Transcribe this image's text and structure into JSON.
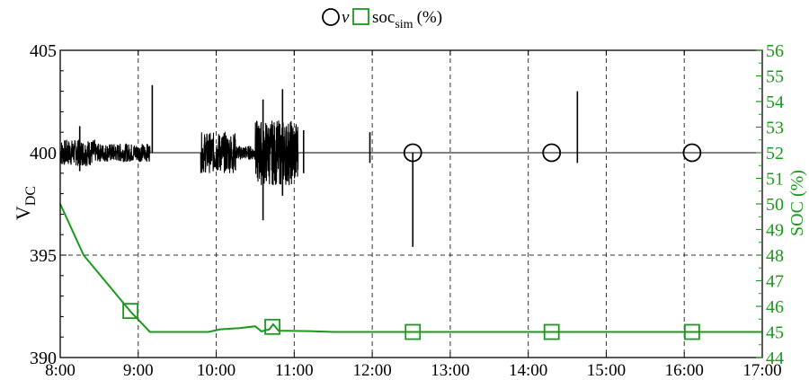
{
  "chart_data": {
    "type": "line",
    "x": {
      "ticks": [
        "8:00",
        "9:00",
        "10:00",
        "11:00",
        "12:00",
        "13:00",
        "14:00",
        "15:00",
        "16:00",
        "17:00"
      ],
      "range_hours": [
        8,
        17
      ],
      "grid": "dashed vertical at each hour"
    },
    "y_left": {
      "label_main": "V",
      "label_sub": "DC",
      "ticks": [
        "390",
        "395",
        "400",
        "405"
      ],
      "range": [
        390,
        405
      ],
      "color": "#000000"
    },
    "y_right": {
      "label": "SOC (%)",
      "ticks": [
        "44",
        "45",
        "46",
        "47",
        "48",
        "49",
        "50",
        "51",
        "52",
        "53",
        "54",
        "55",
        "56"
      ],
      "range": [
        44,
        56
      ],
      "color": "#1a9a1a"
    },
    "legend": {
      "placement": "top-center",
      "v_label": "v",
      "soc_main": "soc",
      "soc_sub": "sim",
      "soc_unit": "(%)"
    },
    "series": [
      {
        "name": "v",
        "axis": "left",
        "color": "#000000",
        "marker": "circle",
        "baseline": 400,
        "noise_bursts": [
          {
            "start": 8.0,
            "end": 8.45,
            "amplitude": 0.65
          },
          {
            "start": 8.45,
            "end": 9.15,
            "amplitude": 0.45
          },
          {
            "start": 9.8,
            "end": 10.25,
            "amplitude": 1.0
          },
          {
            "start": 10.25,
            "end": 10.5,
            "amplitude": 0.35
          },
          {
            "start": 10.5,
            "end": 11.05,
            "amplitude": 1.6
          }
        ],
        "spikes": [
          {
            "x": 8.25,
            "min": 399.1,
            "max": 401.3
          },
          {
            "x": 9.18,
            "min": 400.0,
            "max": 403.3
          },
          {
            "x": 10.6,
            "min": 396.7,
            "max": 402.6
          },
          {
            "x": 10.85,
            "min": 397.9,
            "max": 403.1
          },
          {
            "x": 11.12,
            "min": 399.0,
            "max": 401.1
          },
          {
            "x": 11.97,
            "min": 399.5,
            "max": 401.0
          },
          {
            "x": 12.52,
            "min": 395.4,
            "max": 400.0
          },
          {
            "x": 14.63,
            "min": 399.5,
            "max": 403.0
          }
        ],
        "markers_x": [
          12.52,
          14.3,
          16.1
        ]
      },
      {
        "name": "soc_sim (%)",
        "axis": "right",
        "color": "#1a9a1a",
        "marker": "square",
        "points": [
          [
            8.0,
            50.0
          ],
          [
            8.3,
            48.0
          ],
          [
            8.6,
            46.9
          ],
          [
            8.9,
            45.8
          ],
          [
            9.15,
            45.0
          ],
          [
            9.9,
            45.0
          ],
          [
            10.05,
            45.1
          ],
          [
            10.3,
            45.15
          ],
          [
            10.5,
            45.22
          ],
          [
            10.58,
            45.02
          ],
          [
            10.68,
            45.1
          ],
          [
            10.73,
            45.3
          ],
          [
            10.8,
            45.05
          ],
          [
            11.2,
            45.03
          ],
          [
            11.5,
            45.0
          ],
          [
            17.0,
            45.0
          ]
        ],
        "markers": [
          [
            8.9,
            45.82
          ],
          [
            10.72,
            45.2
          ],
          [
            12.52,
            45.0
          ],
          [
            14.3,
            45.0
          ],
          [
            16.1,
            45.0
          ]
        ]
      }
    ]
  }
}
